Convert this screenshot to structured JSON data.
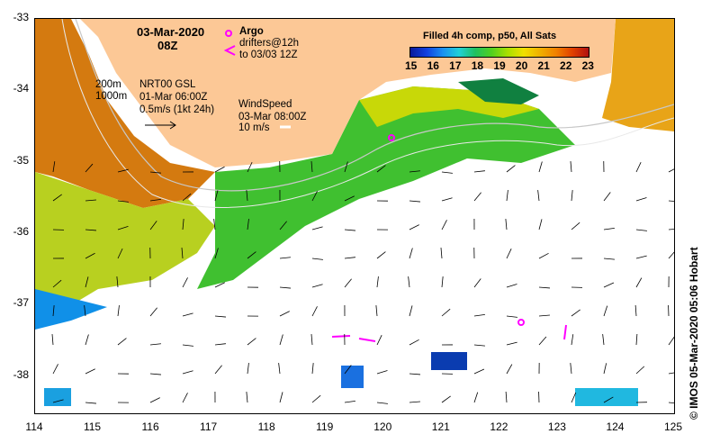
{
  "map": {
    "date": "03-Mar-2020",
    "hour": "08Z",
    "x_ticks": [
      "114",
      "115",
      "116",
      "117",
      "118",
      "119",
      "120",
      "121",
      "122",
      "123",
      "124",
      "125"
    ],
    "y_ticks": [
      "-33",
      "-34",
      "-35",
      "-36",
      "-37",
      "-38"
    ],
    "depth_labels": {
      "d200": "200m",
      "d1000": "1000m"
    },
    "current_legend": {
      "product": "NRT00 GSL",
      "date": "01-Mar 06:00Z",
      "scale": "0.5m/s (1kt 24h)"
    },
    "wind_legend": {
      "title": "WindSpeed",
      "date": "03-Mar 08:00Z",
      "scale": "10 m/s"
    },
    "argo_legend": {
      "label": "Argo",
      "drifters_line1": "drifters@12h",
      "drifters_line2": "to 03/03 12Z"
    },
    "colorbar": {
      "title": "Filled 4h comp, p50, All Sats",
      "ticks": [
        "15",
        "16",
        "17",
        "18",
        "19",
        "20",
        "21",
        "22",
        "23"
      ]
    },
    "credit": "© IMOS 05-Mar-2020 05:06 Hobart",
    "colors": {
      "land": "#fcc896",
      "argo": "#ff00ff",
      "frame": "#000000"
    }
  }
}
